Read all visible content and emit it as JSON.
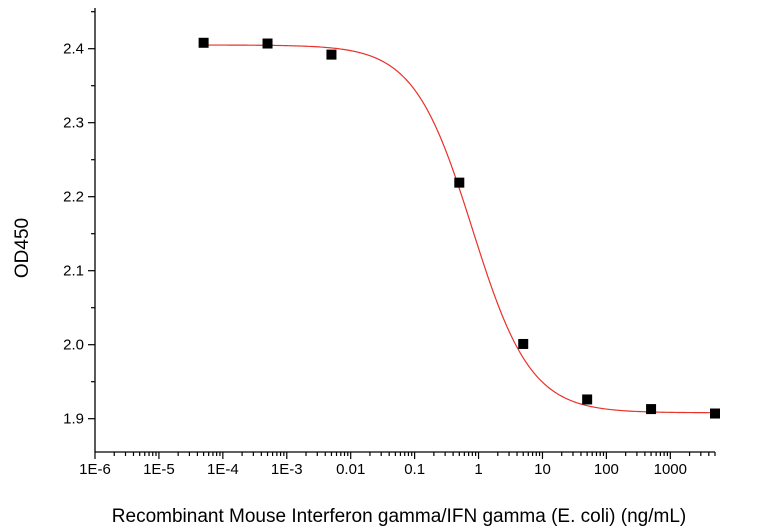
{
  "chart_data": {
    "type": "scatter",
    "title": "",
    "xlabel": "Recombinant Mouse Interferon  gamma/IFN gamma (E. coli) (ng/mL)",
    "ylabel": "OD450",
    "x_scale": "log",
    "xlim": [
      1e-06,
      5000
    ],
    "ylim": [
      1.855,
      2.455
    ],
    "x_ticks": [
      {
        "value": 1e-06,
        "label": "1E-6"
      },
      {
        "value": 1e-05,
        "label": "1E-5"
      },
      {
        "value": 0.0001,
        "label": "1E-4"
      },
      {
        "value": 0.001,
        "label": "1E-3"
      },
      {
        "value": 0.01,
        "label": "0.01"
      },
      {
        "value": 0.1,
        "label": "0.1"
      },
      {
        "value": 1,
        "label": "1"
      },
      {
        "value": 10,
        "label": "10"
      },
      {
        "value": 100,
        "label": "100"
      },
      {
        "value": 1000,
        "label": "1000"
      }
    ],
    "y_ticks": [
      {
        "value": 1.9,
        "label": "1.9"
      },
      {
        "value": 2.0,
        "label": "2.0"
      },
      {
        "value": 2.1,
        "label": "2.1"
      },
      {
        "value": 2.2,
        "label": "2.2"
      },
      {
        "value": 2.3,
        "label": "2.3"
      },
      {
        "value": 2.4,
        "label": "2.4"
      }
    ],
    "grid": false,
    "series": [
      {
        "type": "scatter",
        "marker": "square",
        "color": "#000000",
        "x": [
          5e-05,
          0.0005,
          0.005,
          0.5,
          5,
          50,
          500,
          5000
        ],
        "y": [
          2.408,
          2.407,
          2.392,
          2.219,
          2.001,
          1.926,
          1.913,
          1.907
        ]
      },
      {
        "type": "fit",
        "model": "4PL",
        "color": "#e8322a",
        "params": {
          "top": 2.405,
          "bottom": 1.908,
          "ec50": 0.8,
          "hill": 0.95
        }
      }
    ]
  }
}
